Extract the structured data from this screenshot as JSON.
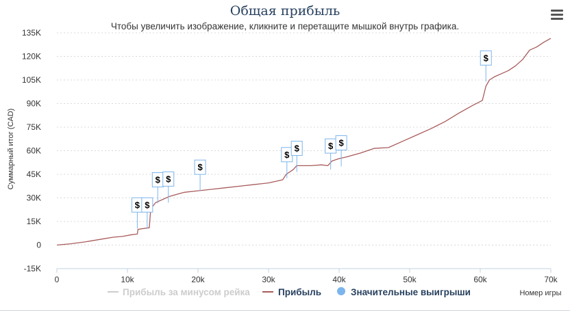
{
  "header": {
    "title": "Общая прибыль",
    "subtitle": "Чтобы увеличить изображение, кликните и перетащите мышкой внутрь графика.",
    "menu_icon": "hamburger-menu-icon"
  },
  "chart_data": {
    "type": "line",
    "ylabel": "Суммарный итог (CAD)",
    "xlabel": "Номер игры",
    "xlim": [
      0,
      70000
    ],
    "ylim": [
      -15000,
      135000
    ],
    "x_ticks": [
      0,
      10000,
      20000,
      30000,
      40000,
      50000,
      60000,
      70000
    ],
    "x_tick_labels": [
      "0",
      "10k",
      "20k",
      "30k",
      "40k",
      "50k",
      "60k",
      "70k"
    ],
    "y_ticks": [
      -15000,
      0,
      15000,
      30000,
      45000,
      60000,
      75000,
      90000,
      105000,
      120000,
      135000
    ],
    "y_tick_labels": [
      "-15K",
      "0",
      "15K",
      "30K",
      "45K",
      "60K",
      "75K",
      "90K",
      "105K",
      "120K",
      "135K"
    ],
    "grid": true,
    "legend_position": "bottom",
    "series": [
      {
        "name": "Прибыль",
        "color": "#a85a5a",
        "x": [
          0,
          2000,
          4000,
          6000,
          8000,
          9300,
          10500,
          11400,
          11500,
          13100,
          13300,
          14000,
          16000,
          18000,
          20000,
          22000,
          24000,
          26000,
          28000,
          30000,
          31000,
          32000,
          32500,
          33500,
          34000,
          36000,
          37500,
          38400,
          39000,
          40000,
          41000,
          43000,
          45000,
          47000,
          49000,
          51000,
          53000,
          55000,
          57000,
          59000,
          60300,
          60800,
          61300,
          62000,
          63000,
          64000,
          65000,
          66000,
          67000,
          68000,
          69000,
          70000
        ],
        "values": [
          0,
          800,
          2000,
          3500,
          5000,
          5500,
          6500,
          7000,
          10000,
          11000,
          23000,
          27000,
          31000,
          33500,
          34500,
          35500,
          36500,
          37500,
          38500,
          39500,
          40500,
          41500,
          45000,
          48000,
          50500,
          50500,
          51000,
          50500,
          53500,
          55000,
          56000,
          58500,
          61500,
          62000,
          66000,
          70000,
          74000,
          78500,
          84000,
          89000,
          92000,
          101000,
          105000,
          107000,
          109000,
          111000,
          114000,
          118000,
          124000,
          126000,
          129000,
          131500
        ]
      },
      {
        "name": "Прибыль за минусом рейка",
        "color": "#cccccc",
        "x": [],
        "values": []
      },
      {
        "name": "Значительные выигрыши",
        "color": "#7cb5ec",
        "marker": "circle",
        "flag_symbol": "$",
        "x": [
          11400,
          12800,
          14300,
          15800,
          20300,
          32600,
          34000,
          38800,
          40300,
          60800
        ],
        "values": [
          10500,
          10500,
          26500,
          27000,
          34500,
          42500,
          46500,
          48000,
          50000,
          104000
        ]
      }
    ]
  }
}
